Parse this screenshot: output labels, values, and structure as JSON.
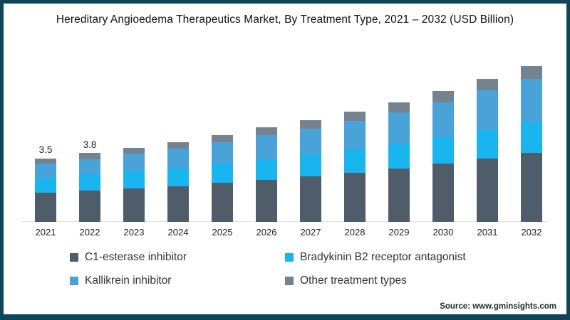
{
  "title": "Hereditary Angioedema Therapeutics Market, By Treatment Type, 2021 – 2032 (USD Billion)",
  "source": "Source: www.gminsights.com",
  "frame": {
    "border_color": "#0e4558",
    "background": "#ffffff"
  },
  "chart_data": {
    "type": "bar",
    "stacked": true,
    "title": "Hereditary Angioedema Therapeutics Market, By Treatment Type, 2021 – 2032 (USD Billion)",
    "xlabel": "",
    "ylabel": "USD Billion",
    "ylim": [
      0,
      9
    ],
    "grid": false,
    "legend_position": "bottom",
    "categories": [
      "2021",
      "2022",
      "2023",
      "2024",
      "2025",
      "2026",
      "2027",
      "2028",
      "2029",
      "2030",
      "2031",
      "2032"
    ],
    "series": [
      {
        "name": "C1-esterase inhibitor",
        "color": "#4f5d6b",
        "values": [
          1.6,
          1.72,
          1.85,
          1.98,
          2.15,
          2.32,
          2.5,
          2.72,
          2.94,
          3.2,
          3.5,
          3.8
        ]
      },
      {
        "name": "Bradykinin B2 receptor antagonist",
        "color": "#19b5ee",
        "values": [
          0.85,
          0.9,
          0.95,
          1.0,
          1.05,
          1.12,
          1.2,
          1.28,
          1.37,
          1.47,
          1.57,
          1.68
        ]
      },
      {
        "name": "Kallikrein inhibitor",
        "color": "#4aa3d8",
        "values": [
          0.75,
          0.85,
          0.95,
          1.05,
          1.2,
          1.33,
          1.43,
          1.59,
          1.74,
          1.93,
          2.17,
          2.4
        ]
      },
      {
        "name": "Other treatment types",
        "color": "#74838f",
        "values": [
          0.3,
          0.33,
          0.35,
          0.37,
          0.4,
          0.43,
          0.47,
          0.51,
          0.55,
          0.6,
          0.66,
          0.72
        ]
      }
    ],
    "totals": [
      3.5,
      3.8,
      4.1,
      4.4,
      4.8,
      5.2,
      5.6,
      6.1,
      6.6,
      7.2,
      7.9,
      8.6
    ],
    "bar_labels": [
      "3.5",
      "3.8",
      "",
      "",
      "",
      "",
      "",
      "",
      "",
      "",
      "",
      ""
    ]
  },
  "legend": {
    "items": [
      {
        "label": "C1-esterase inhibitor",
        "color": "#4f5d6b"
      },
      {
        "label": "Bradykinin B2 receptor antagonist",
        "color": "#19b5ee"
      },
      {
        "label": "Kallikrein inhibitor",
        "color": "#4aa3d8"
      },
      {
        "label": "Other treatment types",
        "color": "#74838f"
      }
    ]
  }
}
